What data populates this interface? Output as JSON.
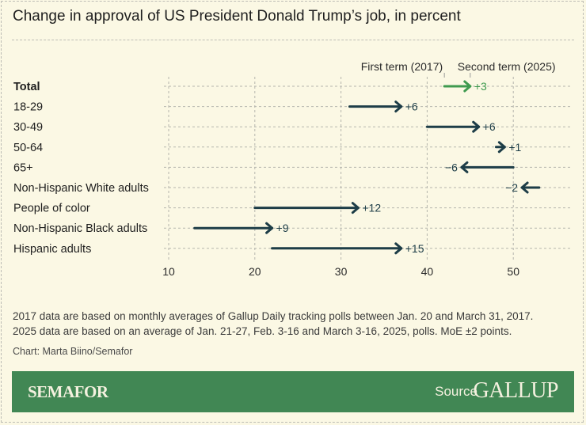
{
  "title": "Change in approval of US President Donald Trump’s job, in percent",
  "chart_data": {
    "type": "dumbbell-arrow",
    "title": "Change in approval of US President Donald Trump’s job, in percent",
    "legend": {
      "start": "First term (2017)",
      "end": "Second term (2025)"
    },
    "xlim": [
      10,
      50
    ],
    "xticks": [
      "10",
      "20",
      "30",
      "40",
      "50"
    ],
    "grid": true,
    "highlight_color": "#3f9a4f",
    "arrow_color": "#1d3d47",
    "rows": [
      {
        "label": "Total",
        "start": 42,
        "end": 45,
        "change": "+3",
        "highlight": true
      },
      {
        "label": "18-29",
        "start": 31,
        "end": 37,
        "change": "+6"
      },
      {
        "label": "30-49",
        "start": 40,
        "end": 46,
        "change": "+6"
      },
      {
        "label": "50-64",
        "start": 48,
        "end": 49,
        "change": "+1"
      },
      {
        "label": "65+",
        "start": 50,
        "end": 44,
        "change": "−6"
      },
      {
        "label": "Non-Hispanic White adults",
        "start": 53,
        "end": 51,
        "change": "−2"
      },
      {
        "label": "People of color",
        "start": 20,
        "end": 32,
        "change": "+12"
      },
      {
        "label": "Non-Hispanic Black adults",
        "start": 13,
        "end": 22,
        "change": "+9"
      },
      {
        "label": "Hispanic adults",
        "start": 22,
        "end": 37,
        "change": "+15"
      }
    ]
  },
  "notes": {
    "line1": "2017 data are based on monthly averages of Gallup Daily tracking polls between Jan. 20 and March 31, 2017.",
    "line2": "2025 data are based on an average of Jan. 21-27, Feb. 3-16 and March 3-16, 2025, polls. MoE ±2 points.",
    "credit": "Chart: Marta Biino/Semafor"
  },
  "footer": {
    "brand": "SEMAFOR",
    "source_label": "Source",
    "source_logo": "GALLUP",
    "color": "#418754"
  }
}
